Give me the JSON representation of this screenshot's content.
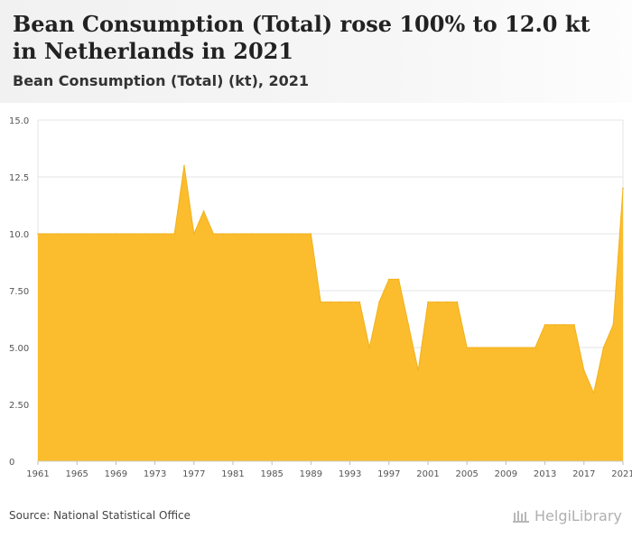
{
  "header": {
    "title": "Bean Consumption (Total) rose 100% to 12.0 kt in Netherlands in 2021",
    "subtitle": "Bean Consumption (Total) (kt), 2021"
  },
  "footer": {
    "source": "Source: National Statistical Office",
    "brand": "HelgiLibrary"
  },
  "colors": {
    "fill": "#fbbd2e",
    "stroke": "#f2b11a",
    "grid": "#e4e4e4"
  },
  "chart_data": {
    "type": "area",
    "title": "Bean Consumption (Total) (kt), 2021",
    "xlabel": "",
    "ylabel": "",
    "ylim": [
      0,
      15
    ],
    "yticks": [
      "0",
      "2.50",
      "5.00",
      "7.50",
      "10.0",
      "12.5",
      "15.0"
    ],
    "ytick_values": [
      0,
      2.5,
      5,
      7.5,
      10,
      12.5,
      15
    ],
    "xticks": [
      "1961",
      "1965",
      "1969",
      "1973",
      "1977",
      "1981",
      "1985",
      "1989",
      "1993",
      "1997",
      "2001",
      "2005",
      "2009",
      "2013",
      "2017",
      "2021"
    ],
    "xrange": [
      1961,
      2021
    ],
    "grid": true,
    "series": [
      {
        "name": "Bean Consumption (Total)",
        "x": [
          1961,
          1962,
          1963,
          1964,
          1965,
          1966,
          1967,
          1968,
          1969,
          1970,
          1971,
          1972,
          1973,
          1974,
          1975,
          1976,
          1977,
          1978,
          1979,
          1980,
          1981,
          1982,
          1983,
          1984,
          1985,
          1986,
          1987,
          1988,
          1989,
          1990,
          1991,
          1992,
          1993,
          1994,
          1995,
          1996,
          1997,
          1998,
          1999,
          2000,
          2001,
          2002,
          2003,
          2004,
          2005,
          2006,
          2007,
          2008,
          2009,
          2010,
          2011,
          2012,
          2013,
          2014,
          2015,
          2016,
          2017,
          2018,
          2019,
          2020,
          2021
        ],
        "values": [
          10,
          10,
          10,
          10,
          10,
          10,
          10,
          10,
          10,
          10,
          10,
          10,
          10,
          10,
          10,
          13,
          10,
          11,
          10,
          10,
          10,
          10,
          10,
          10,
          10,
          10,
          10,
          10,
          10,
          7,
          7,
          7,
          7,
          7,
          5,
          7,
          8,
          8,
          6,
          4,
          7,
          7,
          7,
          7,
          5,
          5,
          5,
          5,
          5,
          5,
          5,
          5,
          6,
          6,
          6,
          6,
          4,
          3,
          5,
          6,
          12
        ]
      }
    ]
  }
}
